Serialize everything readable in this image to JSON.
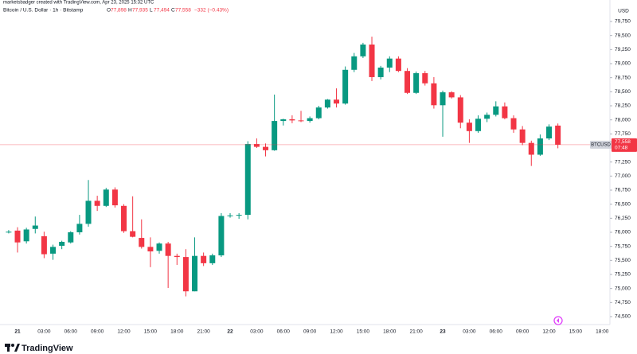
{
  "header": {
    "credit": "marketsbadger created with TradingView.com, Apr 23, 2025 15:32 UTC",
    "symbol": "Bitcoin / U.S. Dollar · 1h · Bitstamp",
    "ohlc": [
      {
        "key": "O",
        "value": "77,898"
      },
      {
        "key": "H",
        "value": "77,935"
      },
      {
        "key": "L",
        "value": "77,494"
      },
      {
        "key": "C",
        "value": "77,558"
      }
    ],
    "change": "−332 (−0.43%)",
    "currency": "USD",
    "logo": "TradingView"
  },
  "chart_data": {
    "type": "candlestick",
    "categories": [
      null,
      "21",
      null,
      null,
      "03:00",
      null,
      null,
      "06:00",
      null,
      null,
      "09:00",
      null,
      null,
      "12:00",
      null,
      null,
      "15:00",
      null,
      null,
      "18:00",
      null,
      null,
      "21:00",
      null,
      null,
      "22",
      null,
      null,
      "03:00",
      null,
      null,
      "06:00",
      null,
      null,
      "09:00",
      null,
      null,
      "12:00",
      null,
      null,
      "15:00",
      null,
      null,
      "18:00",
      null,
      null,
      "21:00",
      null,
      null,
      "23",
      null,
      null,
      "03:00",
      null,
      null,
      "06:00",
      null,
      null,
      "09:00",
      null,
      null,
      "12:00",
      null,
      null,
      "15:00",
      null,
      null,
      "18:00"
    ],
    "open": [
      76000,
      76030,
      75840,
      76060,
      75930,
      75620,
      75760,
      75820,
      76000,
      76150,
      76560,
      76470,
      76760,
      76470,
      76020,
      75900,
      75740,
      75670,
      75800,
      75580,
      75560,
      74950,
      75580,
      75450,
      75590,
      76290,
      76300,
      76310,
      77570,
      77520,
      77460,
      77980,
      78010,
      77990,
      77980,
      78030,
      78220,
      78360,
      78290,
      78890,
      79130,
      79340,
      78760,
      78930,
      79090,
      78870,
      78480,
      78830,
      78650,
      78260,
      78490,
      78400,
      77950,
      77800,
      78020,
      78090,
      78240,
      78030,
      77830,
      77590,
      77380,
      77670,
      77898,
      null,
      null,
      null,
      null,
      null
    ],
    "high": [
      76040,
      76090,
      76080,
      76280,
      76010,
      75780,
      75850,
      76020,
      76310,
      76930,
      76650,
      76790,
      76800,
      76500,
      76640,
      76230,
      75910,
      75820,
      75830,
      75620,
      75700,
      75910,
      75640,
      75620,
      76340,
      76340,
      76340,
      77620,
      77670,
      77580,
      78450,
      78020,
      78080,
      78160,
      78060,
      78250,
      78370,
      78560,
      78950,
      79190,
      79370,
      79480,
      78960,
      79130,
      79130,
      78920,
      78860,
      78870,
      78760,
      78520,
      78510,
      78440,
      78010,
      78080,
      78130,
      78330,
      78310,
      78080,
      77890,
      77630,
      77740,
      77920,
      77935,
      null,
      null,
      null,
      null,
      null
    ],
    "low": [
      75980,
      75640,
      75800,
      75980,
      75540,
      75510,
      75700,
      75800,
      75960,
      76100,
      76380,
      76450,
      76440,
      75990,
      75910,
      75710,
      75380,
      75620,
      75010,
      75420,
      74860,
      74950,
      75400,
      75420,
      75560,
      76260,
      76240,
      76230,
      77500,
      77350,
      77450,
      77900,
      77940,
      77960,
      77950,
      78010,
      78200,
      78220,
      78270,
      78850,
      79100,
      78690,
      78720,
      78850,
      78850,
      78460,
      78460,
      78610,
      78200,
      77700,
      78380,
      77850,
      77590,
      77770,
      77960,
      78060,
      78010,
      77770,
      77550,
      77180,
      77360,
      77640,
      77494,
      null,
      null,
      null,
      null,
      null
    ],
    "close": [
      76010,
      75820,
      76050,
      76120,
      75610,
      75740,
      75830,
      76000,
      76150,
      76560,
      76470,
      76760,
      76480,
      76020,
      75920,
      75740,
      75660,
      75800,
      75580,
      75560,
      74950,
      75580,
      75450,
      75590,
      76290,
      76300,
      76310,
      77570,
      77520,
      77460,
      77980,
      78010,
      77990,
      77980,
      78030,
      78220,
      78360,
      78290,
      78890,
      79130,
      79340,
      78760,
      78930,
      79090,
      78870,
      78480,
      78830,
      78650,
      78260,
      78490,
      78400,
      77950,
      77800,
      78020,
      78090,
      78240,
      78030,
      77830,
      77590,
      77380,
      77670,
      77880,
      77558,
      null,
      null,
      null,
      null,
      null
    ],
    "up_color": "#089981",
    "down_color": "#f23645",
    "ylim": [
      74400,
      79960
    ],
    "yticks": [
      {
        "value": 74500,
        "label": "74,500"
      },
      {
        "value": 74750,
        "label": "74,750"
      },
      {
        "value": 75000,
        "label": "75,000"
      },
      {
        "value": 75250,
        "label": "75,250"
      },
      {
        "value": 75500,
        "label": "75,500"
      },
      {
        "value": 75750,
        "label": "75,750"
      },
      {
        "value": 76000,
        "label": "76,000"
      },
      {
        "value": 76250,
        "label": "76,250"
      },
      {
        "value": 76500,
        "label": "76,500"
      },
      {
        "value": 76750,
        "label": "76,750"
      },
      {
        "value": 77000,
        "label": "77,000"
      },
      {
        "value": 77250,
        "label": "77,250"
      },
      {
        "value": 77500,
        "label": "77,500"
      },
      {
        "value": 77750,
        "label": "77,750"
      },
      {
        "value": 78000,
        "label": "78,000"
      },
      {
        "value": 78250,
        "label": "78,250"
      },
      {
        "value": 78500,
        "label": "78,500"
      },
      {
        "value": 78750,
        "label": "78,750"
      },
      {
        "value": 79000,
        "label": "79,000"
      },
      {
        "value": 79250,
        "label": "79,250"
      },
      {
        "value": 79500,
        "label": "79,500"
      },
      {
        "value": 79750,
        "label": "79,750"
      }
    ],
    "price_label": {
      "symbol": "BTCUSD",
      "price": "77,558",
      "countdown": "07:48"
    }
  }
}
